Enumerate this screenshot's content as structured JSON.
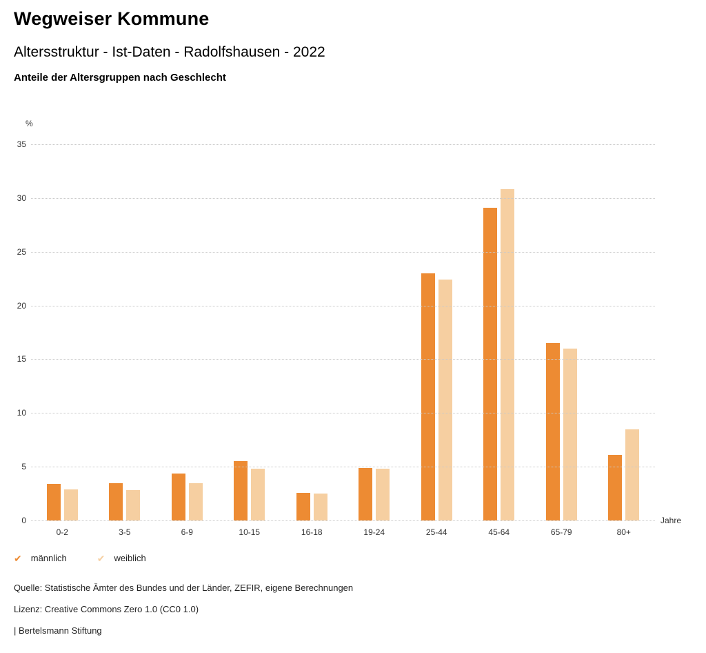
{
  "header": {
    "title": "Wegweiser Kommune",
    "subtitle": "Altersstruktur - Ist-Daten - Radolfshausen - 2022",
    "chart_heading": "Anteile der Altersgruppen nach Geschlecht"
  },
  "chart_data": {
    "type": "bar",
    "title": "Anteile der Altersgruppen nach Geschlecht",
    "categories": [
      "0-2",
      "3-5",
      "6-9",
      "10-15",
      "16-18",
      "19-24",
      "25-44",
      "45-64",
      "65-79",
      "80+"
    ],
    "series": [
      {
        "name": "männlich",
        "color": "#ED8B33",
        "values": [
          3.4,
          3.5,
          4.4,
          5.5,
          2.6,
          4.9,
          23.0,
          29.1,
          16.5,
          6.1
        ]
      },
      {
        "name": "weiblich",
        "color": "#F6CFA1",
        "values": [
          2.9,
          2.8,
          3.5,
          4.8,
          2.5,
          4.8,
          22.4,
          30.8,
          16.0,
          8.5
        ]
      }
    ],
    "ylabel": "%",
    "xlabel": "Jahre",
    "ylim": [
      0,
      35
    ],
    "yticks": [
      0,
      5,
      10,
      15,
      20,
      25,
      30,
      35
    ],
    "grid": true,
    "legend_position": "bottom"
  },
  "footer": {
    "source": "Quelle: Statistische Ämter des Bundes und der Länder, ZEFIR, eigene Berechnungen",
    "license": "Lizenz: Creative Commons Zero 1.0 (CC0 1.0)",
    "attribution": "| Bertelsmann Stiftung"
  }
}
